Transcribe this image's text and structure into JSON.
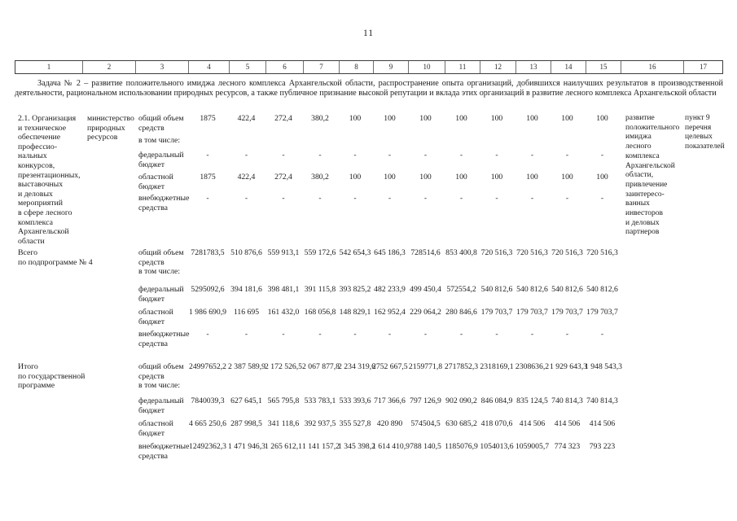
{
  "page": {
    "number": "11"
  },
  "colgrid": {
    "headers": [
      "1",
      "2",
      "3",
      "4",
      "5",
      "6",
      "7",
      "8",
      "9",
      "10",
      "11",
      "12",
      "13",
      "14",
      "15",
      "16",
      "17"
    ]
  },
  "task_paragraph": "Задача № 2 – развитие положительного имиджа лесного комплекса Архангельской области, распространение опыта организаций, добившихся наилучших результатов в производственной деятельности, рациональном использовании природных ресурсов, а также публичное признание высокой репутации и вклада этих организаций в развитие лесного комплекса Архангельской области",
  "table": {
    "blocks": [
      {
        "title_lines": [
          "2.1. Организация",
          "и техническое",
          "обеспечение",
          "профессио-",
          "нальных",
          "конкурсов,",
          "презентационных,",
          "выставочных",
          "и деловых",
          "мероприятий",
          "в сфере лесного",
          "комплекса",
          "Архангельской",
          "области"
        ],
        "executor_lines": [
          "министерство",
          "природных",
          "ресурсов"
        ],
        "rows": [
          {
            "label_lines": [
              "общий объем",
              "средств",
              "",
              "в том числе:"
            ],
            "values": [
              "1875",
              "422,4",
              "272,4",
              "380,2",
              "100",
              "100",
              "100",
              "100",
              "100",
              "100",
              "100",
              "100"
            ]
          },
          {
            "label_lines": [
              "федеральный",
              "бюджет"
            ],
            "values": [
              "-",
              "-",
              "-",
              "-",
              "-",
              "-",
              "-",
              "-",
              "-",
              "-",
              "-",
              "-"
            ]
          },
          {
            "label_lines": [
              "областной",
              "бюджет"
            ],
            "values": [
              "1875",
              "422,4",
              "272,4",
              "380,2",
              "100",
              "100",
              "100",
              "100",
              "100",
              "100",
              "100",
              "100"
            ]
          },
          {
            "label_lines": [
              "внебюджетные",
              "средства"
            ],
            "values": [
              "-",
              "-",
              "-",
              "-",
              "-",
              "-",
              "-",
              "-",
              "-",
              "-",
              "-",
              "-"
            ]
          }
        ],
        "result_lines": [
          "развитие",
          "положительного",
          "имиджа",
          "лесного",
          "комплекса",
          "Архангельской",
          "области,",
          "привлечение",
          "заинтересо-",
          "ванных",
          "инвесторов",
          "и деловых",
          "партнеров"
        ],
        "indicator_lines": [
          "пункт 9",
          "перечня",
          "целевых",
          "показателей"
        ]
      },
      {
        "title_lines": [
          "Всего",
          "по подпрограмме № 4"
        ],
        "rows": [
          {
            "label_lines": [
              "общий объем",
              "средств",
              "в том числе:"
            ],
            "values": [
              "7281783,5",
              "510 876,6",
              "559 913,1",
              "559 172,6",
              "542 654,3",
              "645 186,3",
              "728514,6",
              "853 400,8",
              "720 516,3",
              "720 516,3",
              "720 516,3",
              "720 516,3"
            ]
          },
          {
            "label_lines": [
              "федеральный",
              "бюджет"
            ],
            "values": [
              "5295092,6",
              "394 181,6",
              "398 481,1",
              "391 115,8",
              "393 825,2",
              "482 233,9",
              "499 450,4",
              "572554,2",
              "540 812,6",
              "540 812,6",
              "540 812,6",
              "540 812,6"
            ]
          },
          {
            "label_lines": [
              "областной",
              "бюджет"
            ],
            "values": [
              "1 986 690,9",
              "116 695",
              "161 432,0",
              "168 056,8",
              "148 829,1",
              "162 952,4",
              "229 064,2",
              "280 846,6",
              "179 703,7",
              "179 703,7",
              "179 703,7",
              "179 703,7"
            ]
          },
          {
            "label_lines": [
              "внебюджетные",
              "средства"
            ],
            "values": [
              "-",
              "-",
              "-",
              "-",
              "-",
              "-",
              "-",
              "-",
              "-",
              "-",
              "-",
              "-"
            ]
          }
        ]
      },
      {
        "title_lines": [
          "Итого",
          "по государственной",
          "программе"
        ],
        "rows": [
          {
            "label_lines": [
              "общий объем",
              "средств",
              "в том числе:"
            ],
            "values": [
              "24997652,2",
              "2 387 589,9",
              "2 172 526,5",
              "2 067 877,8",
              "2 234 319,6",
              "2752 667,5",
              "2159771,8",
              "2717852,3",
              "2318169,1",
              "2308636,2",
              "1 929 643,3",
              "1 948 543,3"
            ]
          },
          {
            "label_lines": [
              "федеральный",
              "бюджет"
            ],
            "values": [
              "7840039,3",
              "627 645,1",
              "565 795,8",
              "533 783,1",
              "533 393,6",
              "717 366,6",
              "797 126,9",
              "902 090,2",
              "846 084,9",
              "835 124,5",
              "740 814,3",
              "740 814,3"
            ]
          },
          {
            "label_lines": [
              "областной",
              "бюджет"
            ],
            "values": [
              "4 665 250,6",
              "287 998,5",
              "341 118,6",
              "392 937,5",
              "355 527,8",
              "420 890",
              "574504,5",
              "630 685,2",
              "418 070,6",
              "414 506",
              "414 506",
              "414 506"
            ]
          },
          {
            "label_lines": [
              "внебюджетные",
              "средства"
            ],
            "values": [
              "12492362,3",
              "1 471 946,3",
              "1 265 612,1",
              "1 141 157,2",
              "1 345 398,2",
              "1 614 410,9",
              "788 140,5",
              "1185076,9",
              "1054013,6",
              "1059005,7",
              "774 323",
              "793 223"
            ]
          }
        ]
      }
    ]
  }
}
